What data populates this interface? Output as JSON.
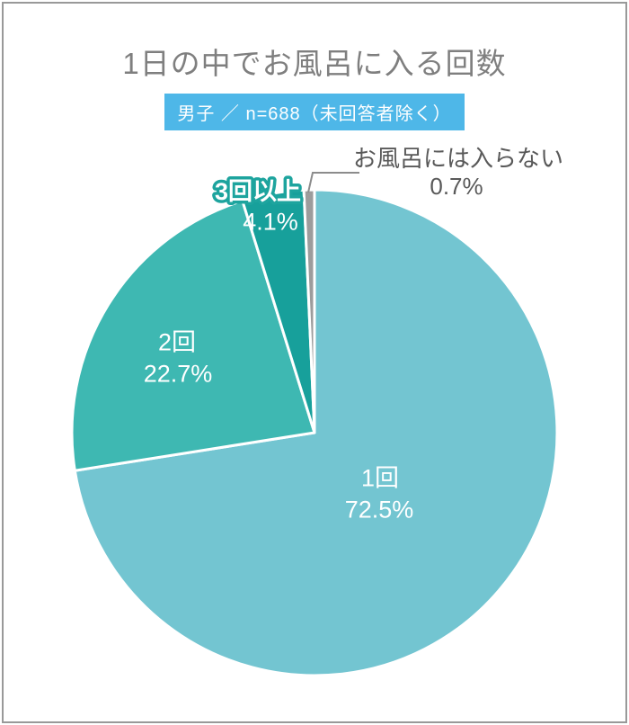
{
  "header": {
    "title": "1日の中でお風呂に入る回数",
    "badge": "男子 ／ n=688（未回答者除く）"
  },
  "chart_data": {
    "type": "pie",
    "title": "1日の中でお風呂に入る回数",
    "subtitle": "男子 ／ n=688（未回答者除く）",
    "unit": "%",
    "direction": "clockwise",
    "start_angle_deg": 0,
    "legend": "none",
    "slices": [
      {
        "label": "1回",
        "value": 72.5,
        "pct_label": "72.5%",
        "color": "#73c5d1",
        "label_placement": "inside"
      },
      {
        "label": "2回",
        "value": 22.7,
        "pct_label": "22.7%",
        "color": "#3eb8b2",
        "label_placement": "inside"
      },
      {
        "label": "3回以上",
        "value": 4.1,
        "pct_label": "4.1%",
        "color": "#17a09b",
        "label_placement": "inside-top"
      },
      {
        "label": "お風呂には入らない",
        "value": 0.7,
        "pct_label": "0.7%",
        "color": "#9c9c9c",
        "label_placement": "outside-callout"
      }
    ]
  },
  "colors": {
    "title_text": "#7f7f7f",
    "badge_bg": "#4eb7e8",
    "badge_text": "#ffffff",
    "inside_label_text": "#ffffff",
    "outside_label_text": "#595959",
    "label_3plus_stroke": "#1da49e",
    "leader_line": "#8c8c8c",
    "slice_divider": "#ffffff",
    "frame_border": "#999999"
  }
}
